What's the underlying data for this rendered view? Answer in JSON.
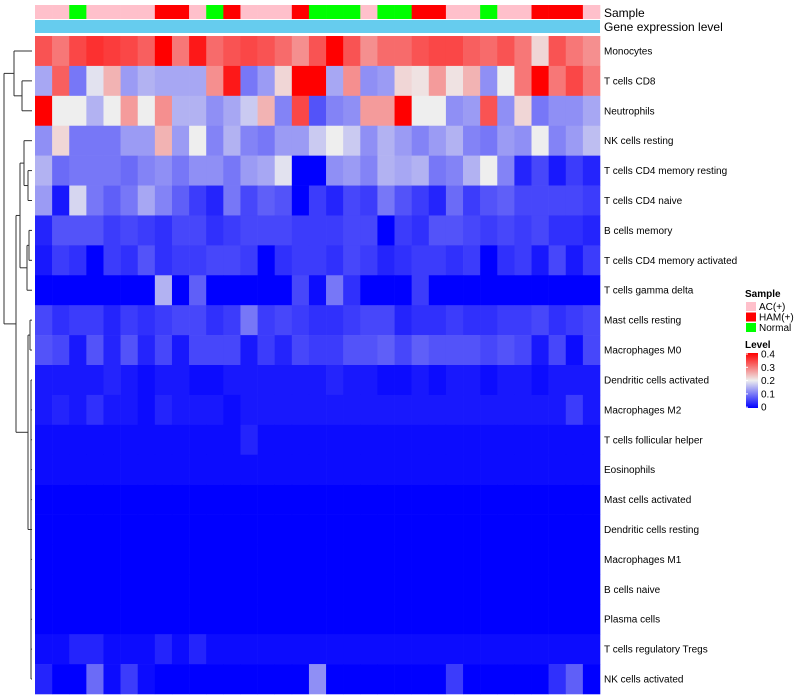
{
  "chart_data": {
    "type": "heatmap",
    "annotation_tracks": [
      {
        "name": "Sample",
        "label": "Sample"
      },
      {
        "name": "Gene expression level",
        "label": "Gene expression level"
      }
    ],
    "sample_groups": [
      "AC",
      "AC",
      "Normal",
      "AC",
      "AC",
      "AC",
      "AC",
      "HAM",
      "HAM",
      "AC",
      "Normal",
      "HAM",
      "AC",
      "AC",
      "AC",
      "HAM",
      "Normal",
      "Normal",
      "Normal",
      "AC",
      "Normal",
      "Normal",
      "HAM",
      "HAM",
      "AC",
      "AC",
      "Normal",
      "AC",
      "AC",
      "HAM",
      "HAM",
      "HAM",
      "AC"
    ],
    "rows": [
      "Monocytes",
      "T cells CD8",
      "Neutrophils",
      "NK cells resting",
      "T cells CD4 memory resting",
      "T cells CD4 naive",
      "B cells memory",
      "T cells CD4 memory activated",
      "T cells gamma delta",
      "Mast cells resting",
      "Macrophages M0",
      "Dendritic cells activated",
      "Macrophages M2",
      "T cells follicular helper",
      "Eosinophils",
      "Mast cells activated",
      "Dendritic cells resting",
      "Macrophages M1",
      "B cells naive",
      "Plasma cells",
      "T cells regulatory  Tregs",
      "NK cells activated"
    ],
    "values": [
      [
        0.33,
        0.3,
        0.34,
        0.36,
        0.35,
        0.34,
        0.32,
        0.4,
        0.3,
        0.38,
        0.31,
        0.33,
        0.34,
        0.33,
        0.31,
        0.28,
        0.33,
        0.4,
        0.33,
        0.28,
        0.31,
        0.31,
        0.33,
        0.34,
        0.34,
        0.32,
        0.31,
        0.33,
        0.3,
        0.22,
        0.33,
        0.3,
        0.28
      ],
      [
        0.14,
        0.32,
        0.1,
        0.19,
        0.25,
        0.13,
        0.15,
        0.14,
        0.14,
        0.14,
        0.28,
        0.38,
        0.1,
        0.13,
        0.22,
        0.4,
        0.4,
        0.14,
        0.28,
        0.12,
        0.13,
        0.22,
        0.21,
        0.27,
        0.21,
        0.25,
        0.12,
        0.2,
        0.3,
        0.4,
        0.3,
        0.34,
        0.3
      ],
      [
        0.4,
        0.2,
        0.2,
        0.15,
        0.2,
        0.27,
        0.2,
        0.28,
        0.15,
        0.15,
        0.12,
        0.14,
        0.17,
        0.25,
        0.11,
        0.34,
        0.07,
        0.11,
        0.12,
        0.27,
        0.27,
        0.4,
        0.2,
        0.2,
        0.12,
        0.13,
        0.33,
        0.12,
        0.22,
        0.1,
        0.12,
        0.12,
        0.14
      ],
      [
        0.12,
        0.22,
        0.1,
        0.1,
        0.1,
        0.13,
        0.13,
        0.25,
        0.13,
        0.2,
        0.11,
        0.15,
        0.11,
        0.1,
        0.13,
        0.13,
        0.17,
        0.2,
        0.17,
        0.12,
        0.15,
        0.13,
        0.11,
        0.13,
        0.15,
        0.11,
        0.1,
        0.13,
        0.12,
        0.2,
        0.11,
        0.13,
        0.16
      ],
      [
        0.15,
        0.09,
        0.1,
        0.1,
        0.1,
        0.09,
        0.11,
        0.12,
        0.1,
        0.12,
        0.12,
        0.1,
        0.13,
        0.14,
        0.19,
        0.0,
        0.0,
        0.12,
        0.13,
        0.11,
        0.15,
        0.14,
        0.15,
        0.1,
        0.11,
        0.15,
        0.2,
        0.11,
        0.03,
        0.06,
        0.02,
        0.05,
        0.03
      ],
      [
        0.13,
        0.02,
        0.18,
        0.1,
        0.08,
        0.1,
        0.14,
        0.11,
        0.08,
        0.05,
        0.03,
        0.1,
        0.06,
        0.08,
        0.07,
        0.0,
        0.05,
        0.03,
        0.06,
        0.05,
        0.1,
        0.07,
        0.05,
        0.03,
        0.09,
        0.05,
        0.07,
        0.08,
        0.06,
        0.06,
        0.06,
        0.06,
        0.05
      ],
      [
        0.03,
        0.07,
        0.07,
        0.07,
        0.05,
        0.06,
        0.05,
        0.04,
        0.06,
        0.06,
        0.04,
        0.05,
        0.06,
        0.06,
        0.06,
        0.05,
        0.05,
        0.05,
        0.06,
        0.06,
        0.0,
        0.05,
        0.04,
        0.07,
        0.07,
        0.06,
        0.05,
        0.06,
        0.05,
        0.06,
        0.04,
        0.04,
        0.03
      ],
      [
        0.02,
        0.05,
        0.04,
        0.0,
        0.05,
        0.04,
        0.07,
        0.04,
        0.05,
        0.05,
        0.06,
        0.06,
        0.05,
        0.0,
        0.04,
        0.05,
        0.05,
        0.04,
        0.06,
        0.05,
        0.03,
        0.04,
        0.05,
        0.05,
        0.04,
        0.05,
        0.0,
        0.04,
        0.05,
        0.02,
        0.06,
        0.02,
        0.05
      ],
      [
        0.0,
        0.0,
        0.0,
        0.0,
        0.0,
        0.0,
        0.0,
        0.15,
        0.0,
        0.08,
        0.0,
        0.0,
        0.0,
        0.0,
        0.0,
        0.06,
        0.01,
        0.1,
        0.04,
        0.0,
        0.0,
        0.0,
        0.05,
        0.0,
        0.0,
        0.0,
        0.0,
        0.0,
        0.0,
        0.0,
        0.0,
        0.0,
        0.0
      ],
      [
        0.06,
        0.04,
        0.05,
        0.05,
        0.03,
        0.05,
        0.04,
        0.05,
        0.06,
        0.06,
        0.04,
        0.05,
        0.1,
        0.05,
        0.06,
        0.05,
        0.04,
        0.04,
        0.05,
        0.06,
        0.06,
        0.03,
        0.04,
        0.04,
        0.05,
        0.04,
        0.04,
        0.05,
        0.05,
        0.06,
        0.04,
        0.05,
        0.06
      ],
      [
        0.07,
        0.06,
        0.02,
        0.07,
        0.03,
        0.07,
        0.03,
        0.06,
        0.02,
        0.06,
        0.06,
        0.06,
        0.02,
        0.05,
        0.03,
        0.06,
        0.05,
        0.05,
        0.07,
        0.07,
        0.08,
        0.06,
        0.08,
        0.07,
        0.07,
        0.07,
        0.06,
        0.07,
        0.06,
        0.02,
        0.06,
        0.01,
        0.06
      ],
      [
        0.02,
        0.02,
        0.02,
        0.02,
        0.03,
        0.02,
        0.01,
        0.02,
        0.02,
        0.01,
        0.01,
        0.02,
        0.02,
        0.02,
        0.02,
        0.02,
        0.02,
        0.03,
        0.02,
        0.02,
        0.01,
        0.01,
        0.02,
        0.01,
        0.02,
        0.02,
        0.01,
        0.02,
        0.02,
        0.01,
        0.02,
        0.02,
        0.02
      ],
      [
        0.02,
        0.03,
        0.02,
        0.04,
        0.02,
        0.02,
        0.01,
        0.03,
        0.02,
        0.02,
        0.02,
        0.01,
        0.02,
        0.02,
        0.02,
        0.02,
        0.02,
        0.02,
        0.02,
        0.02,
        0.02,
        0.02,
        0.02,
        0.02,
        0.02,
        0.02,
        0.02,
        0.02,
        0.02,
        0.02,
        0.02,
        0.05,
        0.02
      ],
      [
        0.01,
        0.01,
        0.01,
        0.01,
        0.01,
        0.01,
        0.01,
        0.01,
        0.01,
        0.01,
        0.01,
        0.01,
        0.03,
        0.01,
        0.01,
        0.01,
        0.01,
        0.01,
        0.01,
        0.01,
        0.01,
        0.01,
        0.01,
        0.01,
        0.01,
        0.01,
        0.01,
        0.01,
        0.01,
        0.01,
        0.01,
        0.01,
        0.01
      ],
      [
        0.01,
        0.01,
        0.01,
        0.01,
        0.01,
        0.01,
        0.01,
        0.01,
        0.01,
        0.01,
        0.01,
        0.01,
        0.01,
        0.01,
        0.01,
        0.01,
        0.01,
        0.01,
        0.01,
        0.01,
        0.01,
        0.01,
        0.01,
        0.01,
        0.01,
        0.01,
        0.01,
        0.01,
        0.01,
        0.01,
        0.01,
        0.01,
        0.01
      ],
      [
        0.0,
        0.0,
        0.0,
        0.0,
        0.0,
        0.0,
        0.0,
        0.0,
        0.0,
        0.0,
        0.0,
        0.0,
        0.0,
        0.0,
        0.0,
        0.0,
        0.0,
        0.0,
        0.0,
        0.0,
        0.0,
        0.0,
        0.0,
        0.0,
        0.0,
        0.0,
        0.0,
        0.0,
        0.0,
        0.0,
        0.0,
        0.0,
        0.0
      ],
      [
        0.0,
        0.0,
        0.0,
        0.0,
        0.0,
        0.0,
        0.0,
        0.0,
        0.0,
        0.0,
        0.0,
        0.0,
        0.0,
        0.0,
        0.0,
        0.0,
        0.0,
        0.0,
        0.0,
        0.0,
        0.0,
        0.0,
        0.0,
        0.0,
        0.0,
        0.0,
        0.0,
        0.0,
        0.0,
        0.0,
        0.0,
        0.0,
        0.0
      ],
      [
        0.0,
        0.0,
        0.0,
        0.0,
        0.0,
        0.0,
        0.0,
        0.0,
        0.0,
        0.0,
        0.0,
        0.0,
        0.0,
        0.0,
        0.0,
        0.0,
        0.0,
        0.0,
        0.0,
        0.0,
        0.0,
        0.0,
        0.0,
        0.0,
        0.0,
        0.0,
        0.0,
        0.0,
        0.0,
        0.0,
        0.0,
        0.0,
        0.0
      ],
      [
        0.0,
        0.0,
        0.0,
        0.0,
        0.0,
        0.0,
        0.0,
        0.0,
        0.0,
        0.0,
        0.0,
        0.0,
        0.0,
        0.0,
        0.0,
        0.0,
        0.0,
        0.0,
        0.0,
        0.0,
        0.0,
        0.0,
        0.0,
        0.0,
        0.0,
        0.0,
        0.0,
        0.0,
        0.0,
        0.0,
        0.0,
        0.0,
        0.0
      ],
      [
        0.0,
        0.0,
        0.0,
        0.0,
        0.0,
        0.0,
        0.0,
        0.0,
        0.0,
        0.0,
        0.0,
        0.0,
        0.0,
        0.0,
        0.0,
        0.0,
        0.0,
        0.0,
        0.0,
        0.0,
        0.0,
        0.0,
        0.0,
        0.0,
        0.0,
        0.0,
        0.0,
        0.0,
        0.0,
        0.0,
        0.0,
        0.0,
        0.0
      ],
      [
        0.01,
        0.01,
        0.03,
        0.03,
        0.01,
        0.01,
        0.01,
        0.03,
        0.01,
        0.03,
        0.01,
        0.01,
        0.01,
        0.01,
        0.01,
        0.01,
        0.01,
        0.01,
        0.01,
        0.01,
        0.01,
        0.01,
        0.01,
        0.01,
        0.01,
        0.01,
        0.01,
        0.01,
        0.01,
        0.01,
        0.01,
        0.01,
        0.01
      ],
      [
        0.03,
        0.0,
        0.0,
        0.09,
        0.01,
        0.05,
        0.01,
        0.0,
        0.0,
        0.0,
        0.0,
        0.0,
        0.0,
        0.0,
        0.0,
        0.0,
        0.12,
        0.0,
        0.0,
        0.0,
        0.0,
        0.0,
        0.0,
        0.0,
        0.05,
        0.0,
        0.0,
        0.0,
        0.0,
        0.0,
        0.04,
        0.08,
        0.0
      ]
    ],
    "color_scale": {
      "min": 0,
      "max": 0.4,
      "low_color": "#0000ff",
      "mid_color": "#eeeeee",
      "high_color": "#ff0000"
    },
    "legend": {
      "sample_title": "Sample",
      "sample_entries": [
        {
          "label": "AC(+)",
          "color": "#ffc0cb"
        },
        {
          "label": "HAM(+)",
          "color": "#ff0000"
        },
        {
          "label": "Normal",
          "color": "#00ff00"
        }
      ],
      "level_title": "Level",
      "level_ticks": [
        "0.4",
        "0.3",
        "0.2",
        "0.1",
        "0"
      ],
      "placement": "right"
    },
    "expression_track_color": "#66ccee",
    "dendrogram": "rows"
  }
}
